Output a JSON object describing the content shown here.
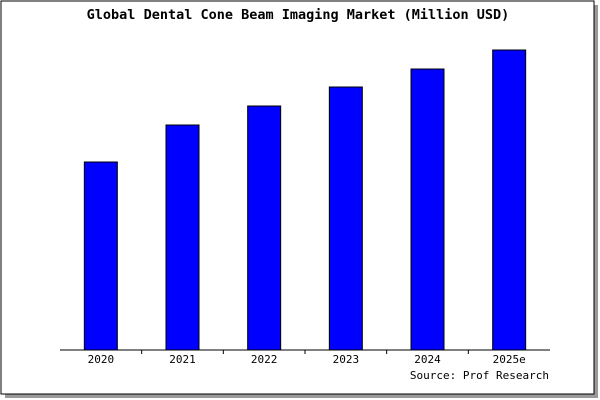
{
  "chart_data": {
    "type": "bar",
    "title": "Global Dental Cone Beam Imaging Market (Million USD)",
    "categories": [
      "2020",
      "2021",
      "2022",
      "2023",
      "2024",
      "2025e"
    ],
    "values": [
      188,
      225,
      244,
      263,
      281,
      300
    ],
    "color": "#0000ff",
    "ylim": [
      0,
      302
    ],
    "source": "Source: Prof Research"
  }
}
